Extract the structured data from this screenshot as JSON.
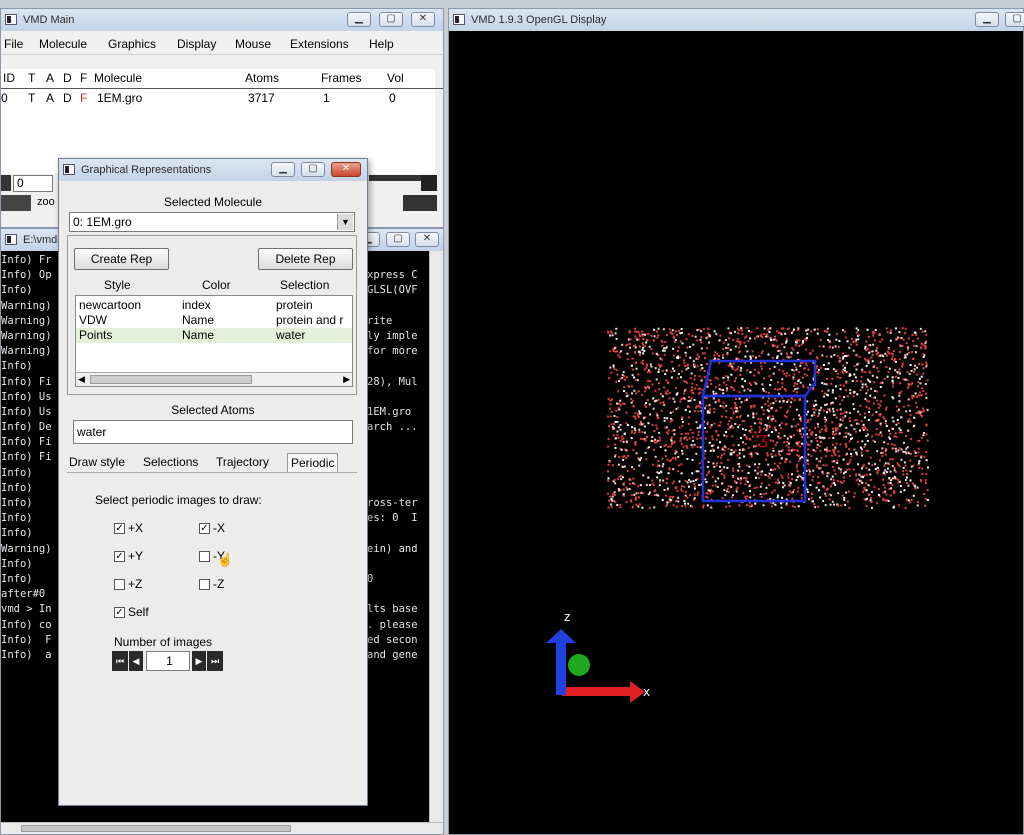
{
  "vmd_main": {
    "title": "VMD Main",
    "menu": [
      "File",
      "Molecule",
      "Graphics",
      "Display",
      "Mouse",
      "Extensions",
      "Help"
    ],
    "columns": {
      "id": "ID",
      "t": "T",
      "a": "A",
      "d": "D",
      "f": "F",
      "molecule": "Molecule",
      "atoms": "Atoms",
      "frames": "Frames",
      "vol": "Vol"
    },
    "molecule_row": {
      "id": "0",
      "t": "T",
      "a": "A",
      "d": "D",
      "f": "F",
      "molecule": "1EM.gro",
      "atoms": "3717",
      "frames": "1",
      "vol": "0"
    },
    "frame_value": "0",
    "zoom_label": "zoo"
  },
  "console": {
    "title": "E:\\vmd-",
    "lines": [
      "Info) Fr",
      "Info) Op",
      "Info)",
      "Warning)",
      "Warning)",
      "Warning)",
      "Warning)",
      "Info)",
      "Info) Fi",
      "Info) Us",
      "Info) Us",
      "Info) De",
      "Info) Fi",
      "Info) Fi",
      "Info)",
      "Info)",
      "Info)",
      "Info)",
      "Info)",
      "Warning)",
      "Info)",
      "Info)",
      "after#0",
      "vmd > In",
      "Info) co",
      "Info)  F",
      "Info)  a"
    ],
    "right_lines": [
      "",
      "xpress C",
      "GLSL(OVF",
      "",
      "rite",
      "ly imple",
      "for more",
      "",
      "28), Mul",
      "",
      "1EM.gro",
      "arch ...",
      "",
      "",
      "",
      "",
      "ross-ter",
      "es: 0  I",
      "",
      "ein) and",
      "",
      "0",
      "",
      "lts base",
      ". please",
      "ed secon",
      "and gene"
    ]
  },
  "gl_display": {
    "title": "VMD 1.9.3 OpenGL Display",
    "axis_x": "x",
    "axis_z": "z"
  },
  "graphical_reps": {
    "title": "Graphical Representations",
    "selected_molecule_label": "Selected Molecule",
    "selected_molecule_value": "0: 1EM.gro",
    "create_rep": "Create Rep",
    "delete_rep": "Delete Rep",
    "table_headers": [
      "Style",
      "Color",
      "Selection"
    ],
    "reps": [
      {
        "style": "newcartoon",
        "color": "index",
        "selection": "protein"
      },
      {
        "style": "VDW",
        "color": "Name",
        "selection": "protein and r"
      },
      {
        "style": "Points",
        "color": "Name",
        "selection": "water"
      }
    ],
    "selected_atoms_label": "Selected Atoms",
    "selected_atoms_value": "water",
    "tabs": [
      "Draw style",
      "Selections",
      "Trajectory",
      "Periodic"
    ],
    "active_tab": "Periodic",
    "periodic_heading": "Select periodic images to draw:",
    "checkboxes": [
      {
        "label": "+X",
        "checked": true
      },
      {
        "label": "-X",
        "checked": true
      },
      {
        "label": "+Y",
        "checked": true
      },
      {
        "label": "-Y",
        "checked": false
      },
      {
        "label": "+Z",
        "checked": false
      },
      {
        "label": "-Z",
        "checked": false
      },
      {
        "label": "Self",
        "checked": true
      }
    ],
    "num_images_label": "Number of images",
    "num_images_value": "1",
    "check_mark": "✓"
  },
  "colors": {
    "console_bg": "#000000",
    "gl_bg": "#000000",
    "cell_box": "#2233dd",
    "water_red": "#e0403a",
    "axis_x": "#e02020",
    "axis_y": "#20b020",
    "axis_z": "#2040e0"
  }
}
